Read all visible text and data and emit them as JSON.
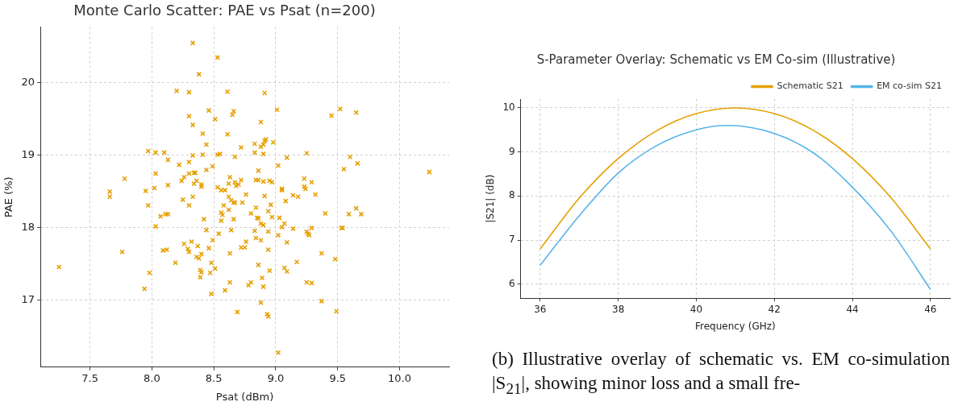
{
  "chart_data": [
    {
      "type": "scatter",
      "title": "Monte Carlo Scatter: PAE vs Psat (n=200)",
      "xlabel": "Psat (dBm)",
      "ylabel": "PAE (%)",
      "marker": "cross",
      "grid": true,
      "xlim": [
        7.1,
        10.4
      ],
      "xticks": [
        7.5,
        {
          "value": 8,
          "label": "8.0"
        },
        8.5,
        {
          "value": 9,
          "label": "9.0"
        },
        9.5,
        {
          "value": 10,
          "label": "10.0"
        }
      ],
      "ylim": [
        16.08,
        20.77
      ],
      "yticks": [
        17,
        18,
        19,
        20
      ],
      "series": [
        {
          "color": "#e69f00",
          "x": [
            8.33,
            8.53,
            8.38,
            8.2,
            8.3,
            8.61,
            8.46,
            8.66,
            8.65,
            8.3,
            8.51,
            8.33,
            8.41,
            8.61,
            8.44,
            8.72,
            7.97,
            8.03,
            8.1,
            8.33,
            8.41,
            8.53,
            8.55,
            8.67,
            8.13,
            8.22,
            8.3,
            8.49,
            8.44,
            7.78,
            8.03,
            8.26,
            8.24,
            8.3,
            8.34,
            8.35,
            8.36,
            8.34,
            8.4,
            8.4,
            8.63,
            8.62,
            8.67,
            8.68,
            8.7,
            8.72,
            7.66,
            7.66,
            7.95,
            8.02,
            8.13,
            8.33,
            8.53,
            8.56,
            8.59,
            8.62,
            7.97,
            8.25,
            8.3,
            8.64,
            8.66,
            8.67,
            8.73,
            8.58,
            8.62,
            8.56,
            8.57,
            8.07,
            8.11,
            8.13,
            8.42,
            8.66,
            8.56,
            8.03,
            8.44,
            8.64,
            8.54,
            8.49,
            8.32,
            8.26,
            8.37,
            8.29,
            8.3,
            8.46,
            8.72,
            8.09,
            8.12,
            7.76,
            8.4,
            8.36,
            8.38,
            8.63,
            8.19,
            8.48,
            8.51,
            8.39,
            8.4,
            8.47,
            8.39,
            7.25,
            7.98,
            7.94,
            8.63,
            8.59,
            8.48,
            8.69,
            8.91,
            9.01,
            8.88,
            9.45,
            9.52,
            9.65,
            8.83,
            8.88,
            8.9,
            8.91,
            8.92,
            8.98,
            8.83,
            8.9,
            9.25,
            9.09,
            9.02,
            9.6,
            9.66,
            9.55,
            10.24,
            8.86,
            8.84,
            8.86,
            8.9,
            8.95,
            8.97,
            9.05,
            9.05,
            9.23,
            9.23,
            9.24,
            9.29,
            8.76,
            8.91,
            9.14,
            9.18,
            9.32,
            8.84,
            8.96,
            9.08,
            8.8,
            8.94,
            8.85,
            8.86,
            8.88,
            8.9,
            8.97,
            9.03,
            9.07,
            9.05,
            9.14,
            9.29,
            9.4,
            9.59,
            9.65,
            9.69,
            9.53,
            9.54,
            8.83,
            8.94,
            9.02,
            9.25,
            9.26,
            9.27,
            8.76,
            8.84,
            8.88,
            9.09,
            8.75,
            8.94,
            9.37,
            9.48,
            8.86,
            8.95,
            9.07,
            9.09,
            9.17,
            8.89,
            8.8,
            8.78,
            8.9,
            9.25,
            9.29,
            8.88,
            9.37,
            8.93,
            8.94,
            9.49,
            9.02
          ],
          "values": [
            20.55,
            20.35,
            20.12,
            19.89,
            19.87,
            19.88,
            19.62,
            19.61,
            19.56,
            19.54,
            19.5,
            19.42,
            19.3,
            19.29,
            19.15,
            19.11,
            19.06,
            19.04,
            19.04,
            19.0,
            19.01,
            19.01,
            19.02,
            18.98,
            18.94,
            18.87,
            18.91,
            18.85,
            18.8,
            18.68,
            18.75,
            18.7,
            18.65,
            18.75,
            18.76,
            18.76,
            18.65,
            18.61,
            18.6,
            18.57,
            18.7,
            18.61,
            18.63,
            18.58,
            18.6,
            18.66,
            18.5,
            18.43,
            18.51,
            18.55,
            18.59,
            18.43,
            18.56,
            18.52,
            18.52,
            18.43,
            18.31,
            18.39,
            18.31,
            18.38,
            18.35,
            18.35,
            18.35,
            18.31,
            18.25,
            18.21,
            18.18,
            18.16,
            18.19,
            18.19,
            18.12,
            18.12,
            18.1,
            18.02,
            17.97,
            17.97,
            17.92,
            17.83,
            17.81,
            17.78,
            17.75,
            17.71,
            17.67,
            17.72,
            17.73,
            17.69,
            17.7,
            17.67,
            17.64,
            17.6,
            17.58,
            17.65,
            17.52,
            17.52,
            17.44,
            17.42,
            17.39,
            17.38,
            17.32,
            17.46,
            17.38,
            17.16,
            17.25,
            17.14,
            17.09,
            16.84,
            19.86,
            19.63,
            19.46,
            19.55,
            19.64,
            19.59,
            19.16,
            19.12,
            19.15,
            19.2,
            19.22,
            19.18,
            19.04,
            19.02,
            19.03,
            18.97,
            18.86,
            18.98,
            18.89,
            18.81,
            18.77,
            18.79,
            18.66,
            18.66,
            18.64,
            18.65,
            18.63,
            18.54,
            18.52,
            18.68,
            18.57,
            18.54,
            18.63,
            18.46,
            18.44,
            18.45,
            18.43,
            18.46,
            18.28,
            18.32,
            18.37,
            18.2,
            18.23,
            18.14,
            18.13,
            18.06,
            18.04,
            18.15,
            18.14,
            18.06,
            18.01,
            17.99,
            18.0,
            18.2,
            18.19,
            18.27,
            18.19,
            18.0,
            18.0,
            17.96,
            17.95,
            17.9,
            17.95,
            17.92,
            17.9,
            17.81,
            17.86,
            17.83,
            17.8,
            17.73,
            17.7,
            17.65,
            17.57,
            17.49,
            17.41,
            17.45,
            17.4,
            17.53,
            17.31,
            17.25,
            17.21,
            17.19,
            17.25,
            17.24,
            16.97,
            16.99,
            16.81,
            16.78,
            16.85,
            16.28
          ]
        }
      ]
    },
    {
      "type": "line",
      "title": "S-Parameter Overlay: Schematic vs EM Co-sim (Illustrative)",
      "xlabel": "Frequency (GHz)",
      "ylabel": "|S21| (dB)",
      "marker": "none",
      "grid": true,
      "legend": "top right",
      "xlim": [
        35.5,
        46.5
      ],
      "xticks": [
        36,
        38,
        40,
        42,
        44,
        46
      ],
      "ylim": [
        5.68,
        10.2
      ],
      "yticks": [
        6,
        7,
        8,
        9,
        10
      ],
      "annotations": [
        "(b) Illustrative overlay of schematic vs. EM co-simulation |S$_{21}$|, showing minor loss and a small fre-"
      ],
      "series": [
        {
          "name": "Schematic S21",
          "color": "#e69f00",
          "x": [
            36,
            37,
            38,
            39,
            40,
            41,
            42,
            43,
            44,
            45,
            46
          ],
          "values": [
            6.8,
            7.95,
            8.85,
            9.49,
            9.87,
            10.0,
            9.87,
            9.49,
            8.85,
            7.95,
            6.8
          ]
        },
        {
          "name": "EM co-sim S21",
          "color": "#56b4e9",
          "x": [
            36,
            37,
            38,
            39,
            40,
            40.8,
            42,
            43,
            44,
            45,
            46
          ],
          "values": [
            6.43,
            7.55,
            8.52,
            9.15,
            9.5,
            9.6,
            9.42,
            8.98,
            8.2,
            7.19,
            5.88
          ]
        }
      ]
    }
  ]
}
